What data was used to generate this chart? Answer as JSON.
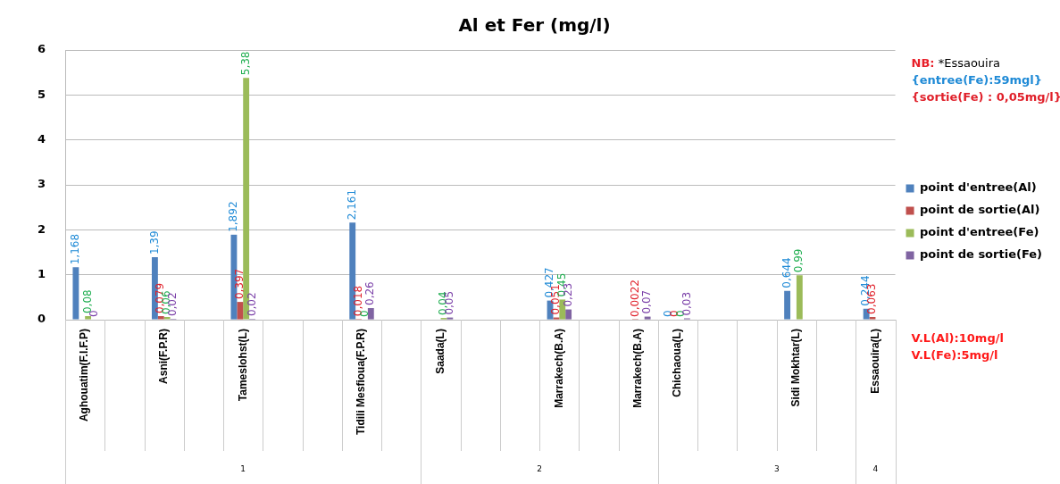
{
  "chart_data": {
    "type": "bar",
    "title": "Al et Fer (mg/l)",
    "categories": [
      "Aghouatim(F.I.F.P)",
      null,
      "Asni(F.P.R)",
      null,
      "Tameslohst(L)",
      null,
      null,
      "Tidili Mesfioua(F.P.R)",
      null,
      "Saada(L)",
      null,
      null,
      "Marrakech(B.A)",
      null,
      "Marrakech(B.A)",
      "Chichaoua(L)",
      null,
      null,
      "Sidi Mokhtar(L)",
      null,
      "Essaouira(L)"
    ],
    "series": [
      {
        "name": "point d'entree(Al)",
        "color": "#4f81bd",
        "values": [
          1.168,
          null,
          1.39,
          null,
          1.892,
          null,
          null,
          2.161,
          null,
          null,
          null,
          null,
          0.427,
          null,
          null,
          0,
          null,
          null,
          0.644,
          null,
          0.244
        ],
        "value_labels": [
          "1,168",
          null,
          "1,39",
          null,
          "1,892",
          null,
          null,
          "2,161",
          null,
          null,
          null,
          null,
          "0,427",
          null,
          null,
          "0",
          null,
          null,
          "0,644",
          null,
          "0,244"
        ]
      },
      {
        "name": "point de sortie(Al)",
        "color": "#c0504d",
        "values": [
          null,
          null,
          0.079,
          null,
          0.397,
          null,
          null,
          0.018,
          null,
          null,
          null,
          null,
          0.051,
          null,
          0.0022,
          0,
          null,
          null,
          null,
          null,
          0.063
        ],
        "value_labels": [
          null,
          null,
          "0,079",
          null,
          "0,397",
          null,
          null,
          "0,018",
          null,
          null,
          null,
          null,
          "0,051",
          null,
          "0,0022",
          "0",
          null,
          null,
          null,
          null,
          "0,063"
        ]
      },
      {
        "name": "point d'entree(Fe)",
        "color": "#9bbb59",
        "values": [
          0.08,
          null,
          0.06,
          null,
          5.38,
          null,
          null,
          0,
          null,
          0.04,
          null,
          null,
          0.45,
          null,
          null,
          0,
          null,
          null,
          0.99,
          null,
          null
        ],
        "value_labels": [
          "0,08",
          null,
          "0,06",
          null,
          "5,38",
          null,
          null,
          "0",
          null,
          "0,04",
          null,
          null,
          "0,45",
          null,
          null,
          "0",
          null,
          null,
          "0,99",
          null,
          null
        ]
      },
      {
        "name": "point de sortie(Fe)",
        "color": "#8064a2",
        "values": [
          0,
          null,
          0.02,
          null,
          0.02,
          null,
          null,
          0.26,
          null,
          0.05,
          null,
          null,
          0.23,
          null,
          0.07,
          0.03,
          null,
          null,
          null,
          null,
          null
        ],
        "value_labels": [
          "0",
          null,
          "0,02",
          null,
          "0,02",
          null,
          null,
          "0,26",
          null,
          "0,05",
          null,
          null,
          "0,23",
          null,
          "0,07",
          "0,03",
          null,
          null,
          null,
          null,
          null
        ]
      }
    ],
    "ylim": [
      0,
      6
    ],
    "yticks": [
      0,
      1,
      2,
      3,
      4,
      5,
      6
    ],
    "grid": "y",
    "legend": "right",
    "annotations": [
      "1",
      "2",
      "3",
      "4",
      "NB: *Essaouira",
      "{entree(Fe):59mgl}",
      "{sortie(Fe) : 0,05mg/l}",
      "V.L(Al):10mg/l",
      "V.L(Fe):5mg/l"
    ]
  }
}
